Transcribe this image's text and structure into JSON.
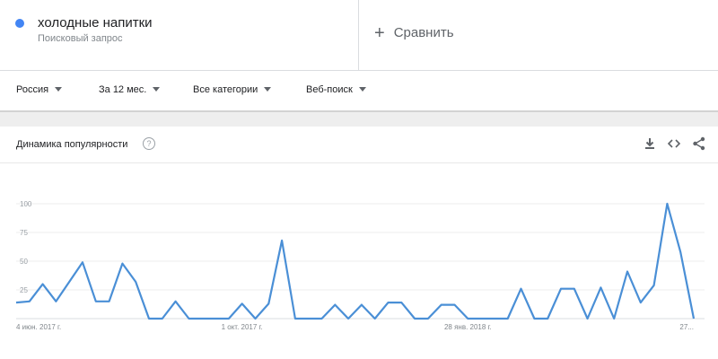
{
  "term": {
    "name": "холодные напитки",
    "type": "Поисковый запрос",
    "color": "#4285f4"
  },
  "compare": {
    "label": "Сравнить"
  },
  "filters": {
    "region": "Россия",
    "period": "За 12 мес.",
    "category": "Все категории",
    "search_type": "Веб-поиск"
  },
  "card": {
    "title": "Динамика популярности",
    "help_glyph": "?"
  },
  "chart_data": {
    "type": "line",
    "title": "Динамика популярности",
    "xlabel": "",
    "ylabel": "",
    "ylim": [
      0,
      100
    ],
    "yticks": [
      25,
      50,
      75,
      100
    ],
    "grid": true,
    "line_color": "#4a8fd6",
    "x_tick_labels": [
      {
        "label": "4 июн. 2017 г.",
        "index": 0
      },
      {
        "label": "1 окт. 2017 г.",
        "index": 17
      },
      {
        "label": "28 янв. 2018 г.",
        "index": 34
      },
      {
        "label": "27...",
        "index": 51
      }
    ],
    "series": [
      {
        "name": "холодные напитки",
        "values": [
          14,
          15,
          30,
          15,
          32,
          49,
          15,
          15,
          48,
          32,
          0,
          0,
          15,
          0,
          0,
          0,
          0,
          13,
          0,
          13,
          68,
          0,
          0,
          0,
          12,
          0,
          12,
          0,
          14,
          14,
          0,
          0,
          12,
          12,
          0,
          0,
          0,
          0,
          26,
          0,
          0,
          26,
          26,
          0,
          27,
          0,
          41,
          14,
          29,
          100,
          58,
          0
        ]
      }
    ]
  }
}
